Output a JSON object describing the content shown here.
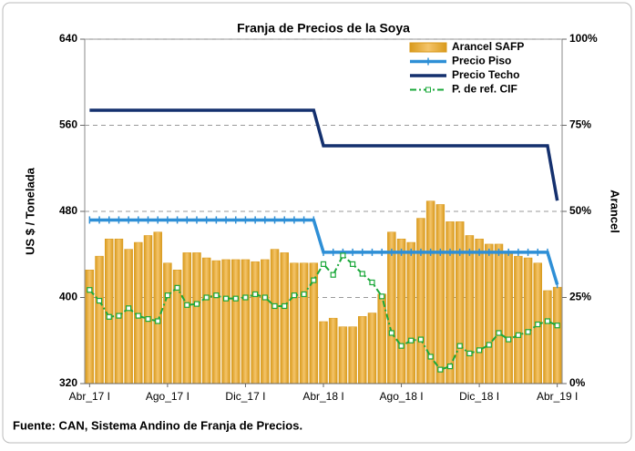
{
  "chart_data": {
    "type": "bar-line",
    "title": "Franja de Precios de la Soya",
    "y_label": "US $ / Tonelada",
    "y2_label": "Arancel",
    "source": "Fuente: CAN, Sistema Andino de Franja de Precios.",
    "categories": [
      "Abr_17 I",
      null,
      null,
      null,
      null,
      null,
      null,
      null,
      "Ago_17 I",
      null,
      null,
      null,
      null,
      null,
      null,
      null,
      "Dic_17 I",
      null,
      null,
      null,
      null,
      null,
      null,
      null,
      "Abr_18 I",
      null,
      null,
      null,
      null,
      null,
      null,
      null,
      "Ago_18 I",
      null,
      null,
      null,
      null,
      null,
      null,
      null,
      "Dic_18 I",
      null,
      null,
      null,
      null,
      null,
      null,
      null,
      "Abr_19 I"
    ],
    "ylim": [
      320,
      640
    ],
    "yticks": [
      320,
      400,
      480,
      560,
      640
    ],
    "y2lim": [
      0,
      100
    ],
    "y2ticks": [
      {
        "value": 0,
        "label": "0%"
      },
      {
        "value": 25,
        "label": "25%"
      },
      {
        "value": 50,
        "label": "50%"
      },
      {
        "value": 75,
        "label": "75%"
      },
      {
        "value": 100,
        "label": "100%"
      }
    ],
    "grid": true,
    "legend": "top-right",
    "series": [
      {
        "name": "Arancel SAFP",
        "type": "bar",
        "axis": "y2",
        "color": "#d99a1c",
        "values": [
          33,
          37,
          42,
          42,
          39,
          41,
          43,
          44,
          35,
          33,
          38,
          38,
          36.5,
          35.7,
          36,
          36,
          36,
          35.4,
          36,
          39,
          38,
          35,
          35,
          35,
          18,
          19,
          16.5,
          16.5,
          19.5,
          20.5,
          26,
          44,
          42,
          41,
          48,
          53,
          52,
          47,
          47,
          43,
          42,
          40.5,
          40.5,
          38,
          37,
          36.5,
          35,
          27,
          28
        ]
      },
      {
        "name": "Precio Piso",
        "type": "line",
        "color": "#2e8fd6",
        "marker": "tick",
        "values": [
          472,
          472,
          472,
          472,
          472,
          472,
          472,
          472,
          472,
          472,
          472,
          472,
          472,
          472,
          472,
          472,
          472,
          472,
          472,
          472,
          472,
          472,
          472,
          472,
          442,
          442,
          442,
          442,
          442,
          442,
          442,
          442,
          442,
          442,
          442,
          442,
          442,
          442,
          442,
          442,
          442,
          442,
          442,
          442,
          442,
          442,
          442,
          442,
          412
        ]
      },
      {
        "name": "Precio Techo",
        "type": "line",
        "color": "#14306e",
        "values": [
          574,
          574,
          574,
          574,
          574,
          574,
          574,
          574,
          574,
          574,
          574,
          574,
          574,
          574,
          574,
          574,
          574,
          574,
          574,
          574,
          574,
          574,
          574,
          574,
          541,
          541,
          541,
          541,
          541,
          541,
          541,
          541,
          541,
          541,
          541,
          541,
          541,
          541,
          541,
          541,
          541,
          541,
          541,
          541,
          541,
          541,
          541,
          541,
          490
        ]
      },
      {
        "name": "P. de ref. CIF",
        "type": "line",
        "color": "#1aa83a",
        "marker": "square",
        "line_style": "dash-dot",
        "values": [
          407,
          397,
          382,
          383,
          390,
          383,
          380,
          378,
          402,
          409,
          393,
          394,
          400,
          402,
          399,
          399,
          400,
          403,
          400,
          392,
          392,
          402,
          403,
          416,
          431,
          421,
          439,
          431,
          422,
          414,
          401,
          367,
          355,
          360,
          361,
          345,
          333,
          336,
          355,
          348,
          351,
          356,
          367,
          361,
          365,
          368,
          375,
          378,
          374
        ]
      }
    ]
  }
}
